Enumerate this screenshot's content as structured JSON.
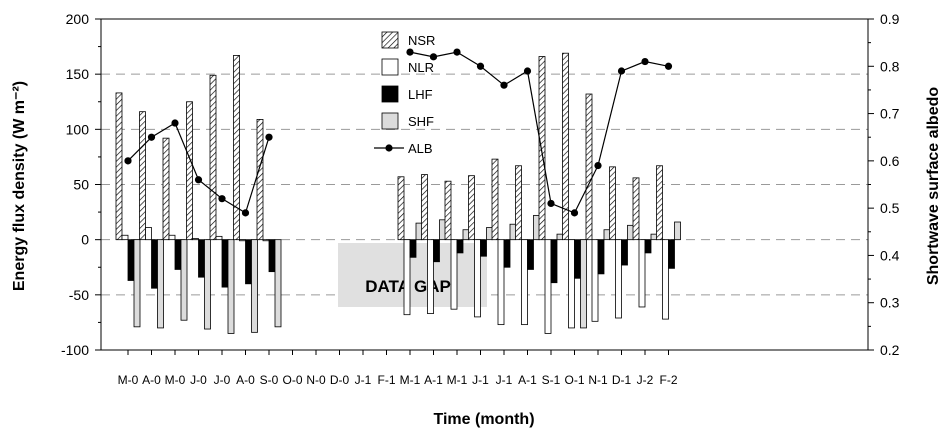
{
  "chart_data": {
    "type": "bar",
    "categories": [
      "M-0",
      "A-0",
      "M-0",
      "J-0",
      "J-0",
      "A-0",
      "S-0",
      "O-0",
      "N-0",
      "D-0",
      "J-1",
      "F-1",
      "M-1",
      "A-1",
      "M-1",
      "J-1",
      "J-1",
      "A-1",
      "S-1",
      "O-1",
      "N-1",
      "D-1",
      "J-2",
      "F-2"
    ],
    "series": [
      {
        "name": "NSR",
        "kind": "bar",
        "pattern": "hatch",
        "axis": "left",
        "values": [
          133,
          116,
          92,
          125,
          149,
          167,
          109,
          null,
          null,
          null,
          null,
          null,
          57,
          59,
          53,
          58,
          73,
          67,
          166,
          169,
          132,
          66,
          56,
          67
        ]
      },
      {
        "name": "NLR",
        "kind": "bar",
        "color": "#ffffff",
        "axis": "left",
        "values": [
          4,
          11,
          4,
          1,
          3,
          -1,
          -1,
          null,
          null,
          null,
          null,
          null,
          -1,
          -1,
          -1,
          -1,
          -1,
          -1,
          -1,
          -1,
          -1,
          -1,
          -1,
          -1
        ]
      },
      {
        "name": "LHF",
        "kind": "bar",
        "color": "#000000",
        "axis": "left",
        "values": [
          -37,
          -44,
          -27,
          -34,
          -43,
          -40,
          -29,
          null,
          null,
          null,
          null,
          null,
          -16,
          -20,
          -12,
          -15,
          -25,
          -27,
          -39,
          -35,
          -31,
          -23,
          -12,
          -26
        ]
      },
      {
        "name": "SHF",
        "kind": "bar",
        "color": "#dcdcdc",
        "axis": "left",
        "values": [
          -79,
          -80,
          -73,
          -81,
          -85,
          -84,
          -79,
          null,
          null,
          null,
          null,
          null,
          15,
          18,
          9,
          11,
          14,
          22,
          5,
          -80,
          9,
          13,
          5,
          16
        ]
      },
      {
        "name": "ALB",
        "kind": "line",
        "color": "#000000",
        "axis": "right",
        "values": [
          0.6,
          0.65,
          0.68,
          0.56,
          0.52,
          0.49,
          0.65,
          null,
          null,
          null,
          null,
          null,
          0.83,
          0.82,
          0.83,
          0.8,
          0.76,
          0.79,
          0.51,
          0.49,
          0.59,
          0.79,
          0.81,
          0.8
        ]
      }
    ],
    "negatives_nlr_shf": {
      "NLR": [
        null,
        null,
        null,
        null,
        null,
        null,
        null,
        null,
        null,
        null,
        null,
        null,
        -68,
        -67,
        -63,
        -70,
        -77,
        -77,
        -85,
        -80,
        -74,
        -71,
        -61,
        -72
      ],
      "SHF": [
        -79,
        -80,
        -73,
        -81,
        -85,
        -84,
        -79,
        null,
        null,
        null,
        null,
        null,
        null,
        null,
        null,
        null,
        null,
        null,
        null,
        null,
        null,
        null,
        null,
        null
      ]
    },
    "xlabel": "Time (month)",
    "ylabel": "Energy flux density (W m⁻²)",
    "ylabel_right": "Shortwave surface albedo",
    "ylim": [
      -100,
      200
    ],
    "yticks": [
      "200",
      "150",
      "100",
      "50",
      "0",
      "-50",
      "-100"
    ],
    "ylim_right": [
      0.2,
      0.9
    ],
    "yticks_right": [
      "0.9",
      "0.8",
      "0.7",
      "0.6",
      "0.5",
      "0.4",
      "0.3",
      "0.2"
    ],
    "grid": "dashed-horizontal",
    "legend_position": "top-center",
    "annotation": "DATA GAP"
  }
}
